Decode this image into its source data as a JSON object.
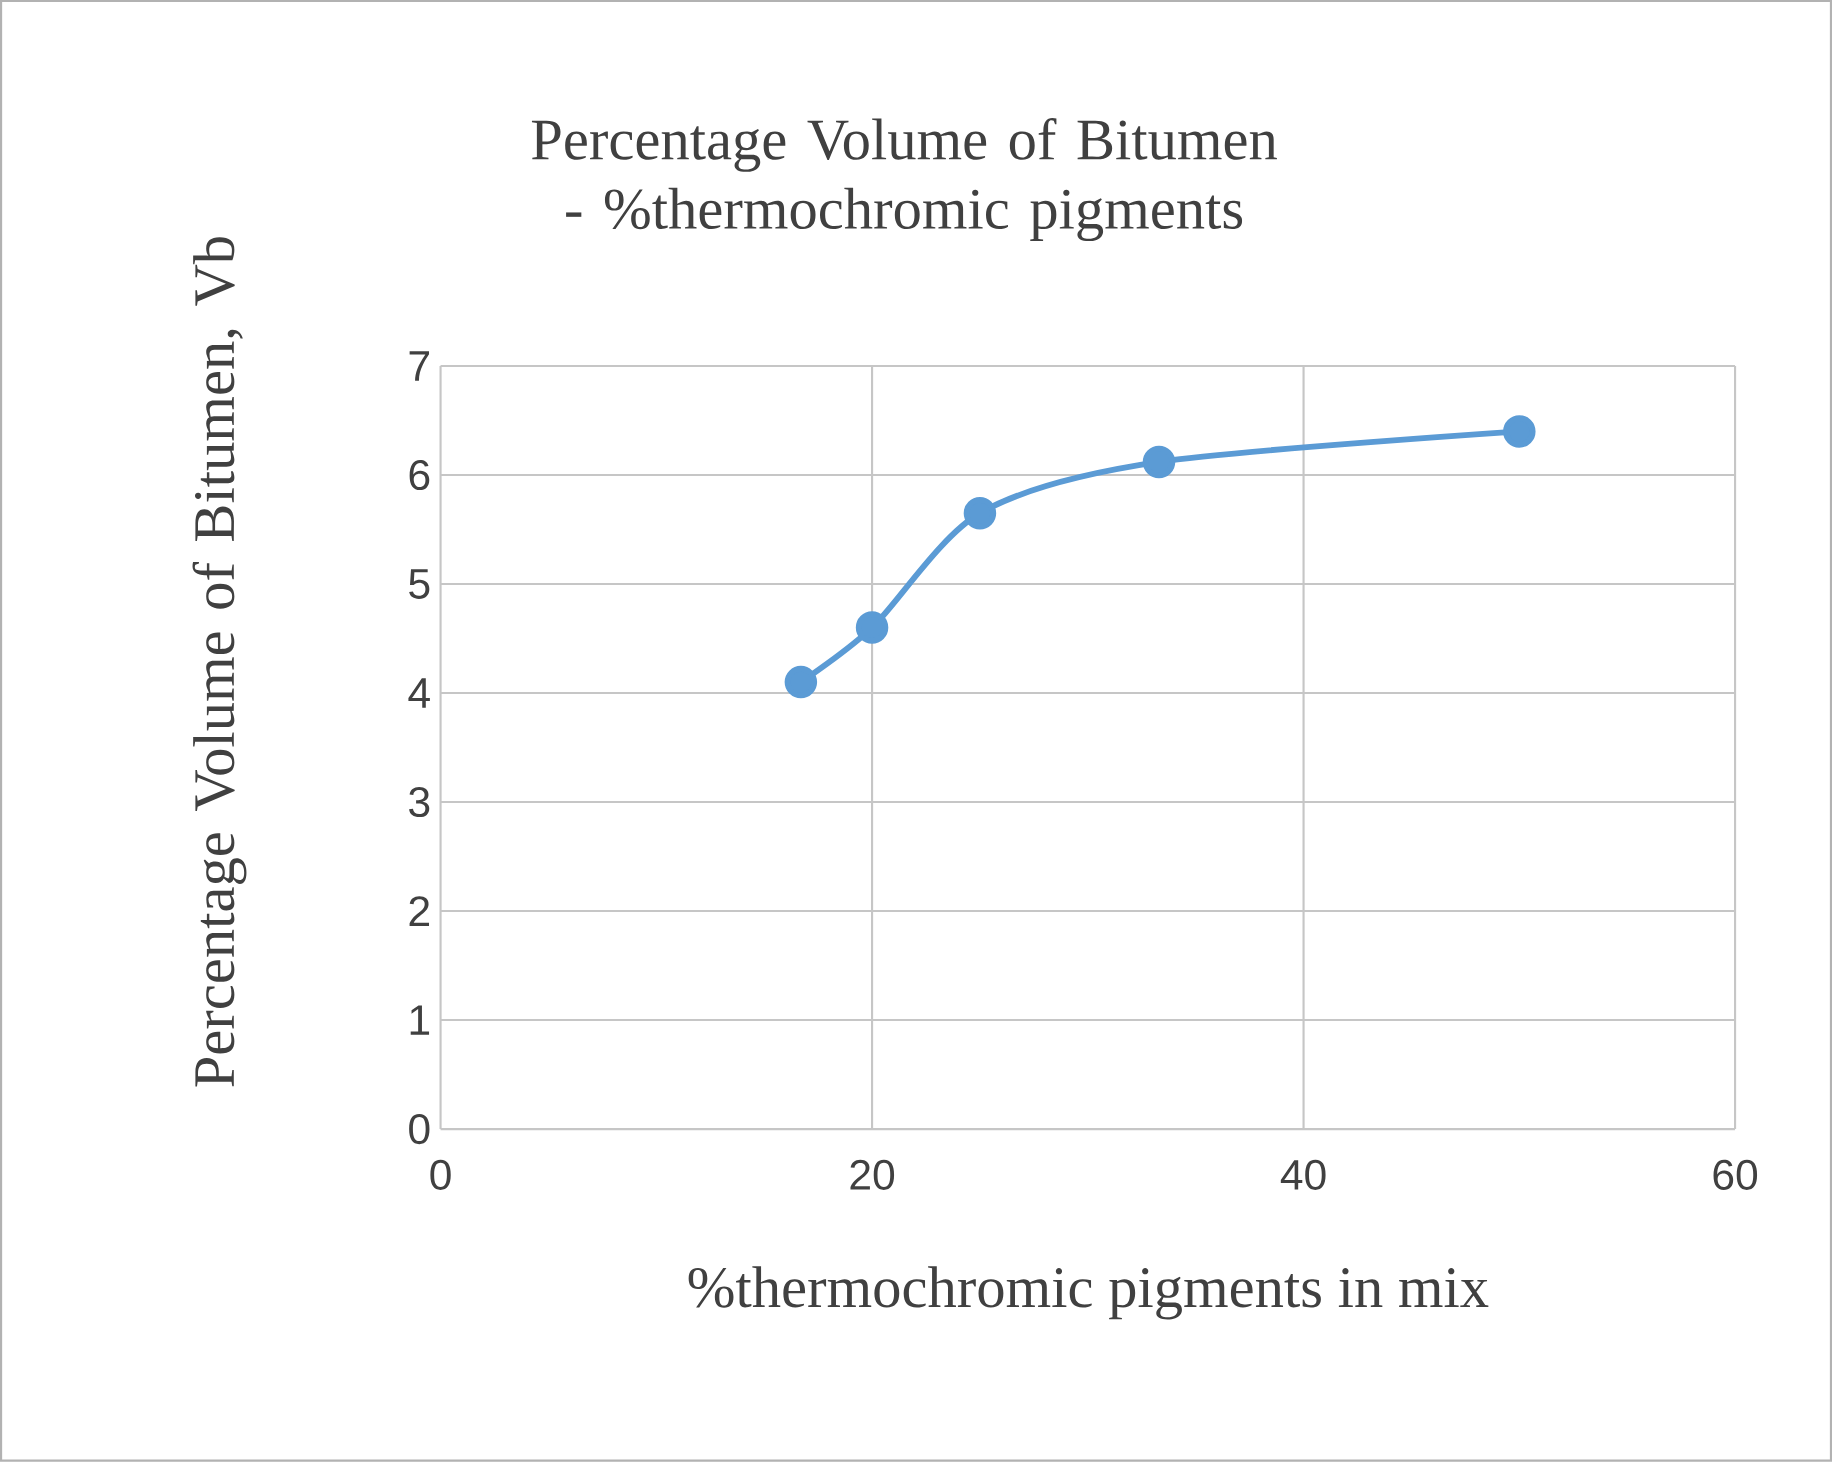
{
  "chart_data": {
    "type": "line",
    "title": "Percentage Volume of Bitumen - %thermochromic pigments",
    "xlabel": "%thermochromic pigments in mix",
    "ylabel": "Percentage Volume of Bitumen, Vb",
    "x": [
      16.7,
      20,
      25,
      33.3,
      50
    ],
    "series": [
      {
        "color": "#5b9bd5",
        "values": [
          4.1,
          4.6,
          5.65,
          6.12,
          6.4
        ]
      }
    ],
    "xlim": [
      0,
      60
    ],
    "xticks": [
      0,
      20,
      40,
      60
    ],
    "ylim": [
      0,
      7
    ],
    "yticks": [
      0,
      1,
      2,
      3,
      4,
      5,
      6,
      7
    ],
    "grid": true,
    "marker": "circle",
    "line_style": "solid"
  }
}
